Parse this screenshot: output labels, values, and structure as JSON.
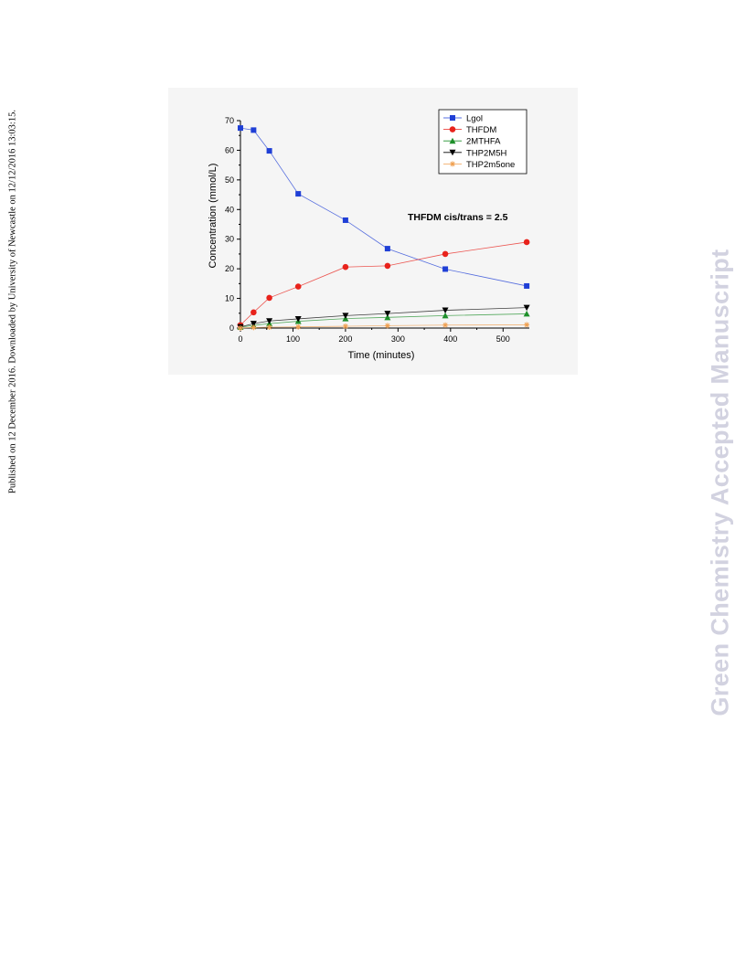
{
  "page": {
    "side_note": "Published on 12 December 2016. Downloaded by University of Newcastle on 12/12/2016 13:03:15.",
    "watermark": "Green Chemistry Accepted Manuscript"
  },
  "chart_data": {
    "type": "line",
    "title": "",
    "xlabel": "Time (minutes)",
    "ylabel": "Concentration (mmol/L)",
    "xlim": [
      0,
      550
    ],
    "ylim": [
      0,
      70
    ],
    "xticks": [
      0,
      100,
      200,
      300,
      400,
      500
    ],
    "yticks": [
      0,
      10,
      20,
      30,
      40,
      50,
      60,
      70
    ],
    "grid": false,
    "legend_position": "top-right",
    "annotation": "THFDM cis/trans = 2.5",
    "series": [
      {
        "name": "Lgol",
        "color": "#1f3fd6",
        "marker": "square",
        "x": [
          0,
          25,
          55,
          110,
          200,
          280,
          390,
          545
        ],
        "y": [
          67.5,
          66.8,
          59.8,
          45.3,
          36.4,
          26.8,
          19.9,
          14.2
        ]
      },
      {
        "name": "THFDM",
        "color": "#e8221b",
        "marker": "circle",
        "x": [
          0,
          25,
          55,
          110,
          200,
          280,
          390,
          545
        ],
        "y": [
          1.0,
          5.3,
          10.2,
          14.0,
          20.6,
          21.0,
          25.0,
          29.0
        ]
      },
      {
        "name": "2MTHFA",
        "color": "#1e8f2a",
        "marker": "triangle-up",
        "x": [
          0,
          25,
          55,
          110,
          200,
          280,
          390,
          545
        ],
        "y": [
          0.3,
          0.9,
          1.5,
          2.3,
          3.2,
          3.6,
          4.2,
          4.8
        ]
      },
      {
        "name": "THP2M5H",
        "color": "#000000",
        "marker": "triangle-down",
        "x": [
          0,
          25,
          55,
          110,
          200,
          280,
          390,
          545
        ],
        "y": [
          0.4,
          1.5,
          2.4,
          3.1,
          4.2,
          4.9,
          6.0,
          6.9
        ]
      },
      {
        "name": "THP2m5one",
        "color": "#f0a050",
        "marker": "star",
        "x": [
          0,
          25,
          55,
          110,
          200,
          280,
          390,
          545
        ],
        "y": [
          0.0,
          0.2,
          0.3,
          0.4,
          0.6,
          0.8,
          1.0,
          1.1
        ]
      }
    ]
  }
}
